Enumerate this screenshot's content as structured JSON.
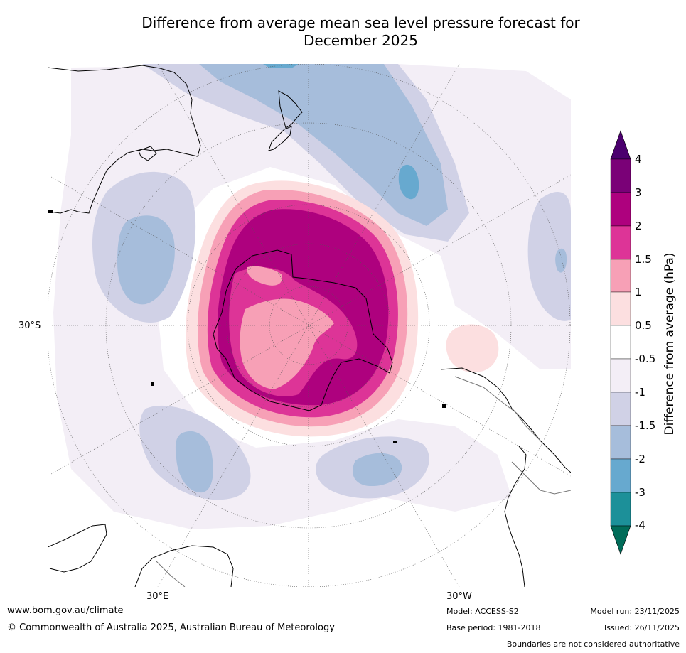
{
  "title": {
    "line1": "Difference from average mean sea level pressure forecast for",
    "line2": "December 2025"
  },
  "map": {
    "lat_label": "30°S",
    "lon_label_east": "30°E",
    "lon_label_west": "30°W",
    "contour_colors": {
      "pos_4plus": "#4b006e",
      "pos_3_4": "#7a0177",
      "pos_2_3": "#ae017e",
      "pos_1_5_2": "#dd3497",
      "pos_1_1_5": "#f7a0b6",
      "pos_0_5_1": "#fcdfe0",
      "neutral": "#ffffff",
      "neg_0_5_1": "#f3eef6",
      "neg_1_1_5": "#d0d1e6",
      "neg_1_5_2": "#a6bddb",
      "neg_2_3": "#67a9cf",
      "neg_3_4": "#1c9099",
      "neg_4plus": "#016c59"
    }
  },
  "colorbar": {
    "ticks": [
      "4",
      "3",
      "2",
      "1.5",
      "1",
      "0.5",
      "-0.5",
      "-1",
      "-1.5",
      "-2",
      "-3",
      "-4"
    ],
    "label": "Difference from average (hPa)"
  },
  "footer": {
    "website": "www.bom.gov.au/climate",
    "copyright": "© Commonwealth of Australia 2025, Australian Bureau of Meteorology",
    "model": "Model: ACCESS-S2",
    "base_period": "Base period: 1981-2018",
    "model_run": "Model run: 23/11/2025",
    "issued": "Issued: 26/11/2025",
    "disclaimer": "Boundaries are not considered authoritative"
  }
}
